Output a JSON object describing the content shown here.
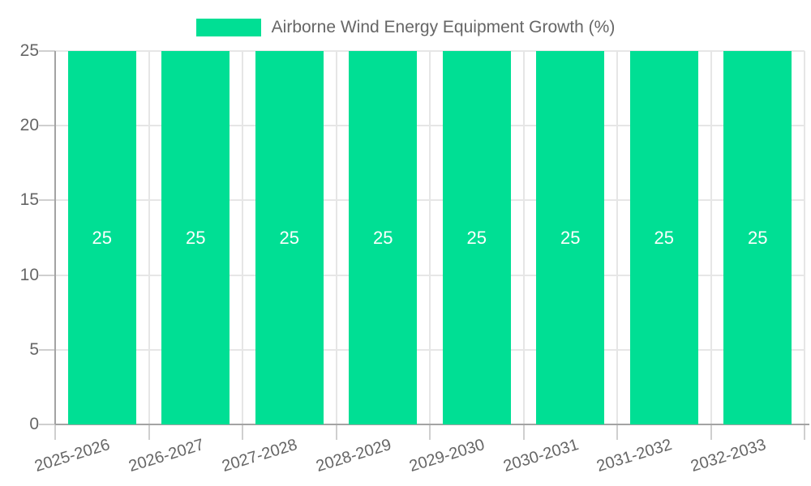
{
  "chart_data": {
    "type": "bar",
    "title": "Airborne Wind Energy Equipment Growth (%)",
    "xlabel": "",
    "ylabel": "",
    "categories": [
      "2025-2026",
      "2026-2027",
      "2027-2028",
      "2028-2029",
      "2029-2030",
      "2030-2031",
      "2031-2032",
      "2032-2033"
    ],
    "series": [
      {
        "name": "Airborne Wind Energy Equipment Growth (%)",
        "values": [
          25,
          25,
          25,
          25,
          25,
          25,
          25,
          25
        ]
      }
    ],
    "data_labels": [
      "25",
      "25",
      "25",
      "25",
      "25",
      "25",
      "25",
      "25"
    ],
    "ylim": [
      0,
      25
    ],
    "y_ticks": [
      0,
      5,
      10,
      15,
      20,
      25
    ],
    "legend_position": "top",
    "grid": true,
    "colors": {
      "bar": "#00df94",
      "data_label": "#ffffff",
      "text": "#666666",
      "grid": "#e6e6e6",
      "tick": "#cfcfcf",
      "axis_border": "#a3a3a3",
      "background": "#ffffff"
    }
  }
}
